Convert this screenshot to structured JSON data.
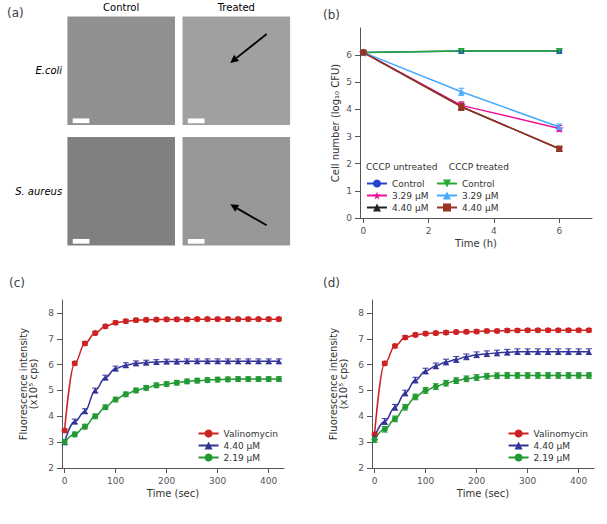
{
  "chart_data": [
    {
      "type": "image_grid",
      "title": "(a)",
      "annotations": [
        "Control",
        "Treated",
        "E.coli",
        "S. aureus"
      ],
      "colors": [
        "#909090",
        "#a0a0a0",
        "#808080",
        "#989898"
      ]
    },
    {
      "type": "line",
      "title": "(b)",
      "xlabel": "Time (h)",
      "ylabel": "Cell number (log₁₀ CFU)",
      "x": [
        0,
        3,
        6
      ],
      "series": [
        {
          "name": "Control",
          "color": "#2244cc",
          "marker": "circle",
          "values": [
            6.1,
            6.15,
            6.15
          ],
          "yerr": [
            0.07,
            0.09,
            0.09
          ]
        },
        {
          "name": "3.29 μM",
          "color": "#ee1199",
          "marker": "star",
          "values": [
            6.1,
            4.15,
            3.3
          ],
          "yerr": [
            0.07,
            0.13,
            0.11
          ]
        },
        {
          "name": "4.40 μM",
          "color": "#222222",
          "marker": "triangle",
          "values": [
            6.1,
            4.1,
            2.55
          ],
          "yerr": [
            0.07,
            0.13,
            0.09
          ]
        },
        {
          "name": "Control",
          "color": "#22aa33",
          "marker": "triangle_down",
          "values": [
            6.1,
            6.15,
            6.15
          ],
          "yerr": [
            0.07,
            0.09,
            0.09
          ]
        },
        {
          "name": "3.29 μM",
          "color": "#44aaff",
          "marker": "triangle",
          "values": [
            6.1,
            4.65,
            3.35
          ],
          "yerr": [
            0.07,
            0.13,
            0.11
          ]
        },
        {
          "name": "4.40 μM",
          "color": "#993322",
          "marker": "square",
          "values": [
            6.1,
            4.1,
            2.55
          ],
          "yerr": [
            0.07,
            0.13,
            0.09
          ]
        }
      ],
      "xlim": [
        -0.1,
        7
      ],
      "ylim": [
        0,
        7
      ],
      "xticks": [
        0,
        2,
        4,
        6
      ],
      "yticks": [
        0,
        1,
        2,
        3,
        4,
        5,
        6
      ],
      "grid": false,
      "legend": "lower left",
      "legend_title": "CCCP untreated    CCCP treated",
      "line_style": "solid"
    },
    {
      "type": "line",
      "title": "(c)",
      "xlabel": "Time (sec)",
      "ylabel": "Fluorescence intensity\n(x10⁵ cps)",
      "x": [
        0,
        20,
        40,
        60,
        80,
        100,
        120,
        140,
        160,
        180,
        200,
        220,
        240,
        260,
        280,
        300,
        320,
        340,
        360,
        380,
        400,
        420
      ],
      "series": [
        {
          "name": "Valinomycin",
          "color": "#cc2222",
          "marker": "circle",
          "values": [
            3.45,
            6.05,
            6.82,
            7.22,
            7.48,
            7.62,
            7.68,
            7.72,
            7.73,
            7.74,
            7.75,
            7.75,
            7.75,
            7.76,
            7.76,
            7.76,
            7.76,
            7.76,
            7.76,
            7.76,
            7.76,
            7.76
          ],
          "yerr": 0.07
        },
        {
          "name": "4.40 μM",
          "color": "#333399",
          "marker": "triangle",
          "values": [
            3.0,
            3.8,
            4.2,
            5.0,
            5.5,
            5.85,
            5.98,
            6.05,
            6.08,
            6.1,
            6.12,
            6.12,
            6.13,
            6.13,
            6.13,
            6.13,
            6.13,
            6.13,
            6.13,
            6.13,
            6.13,
            6.13
          ],
          "yerr": 0.09
        },
        {
          "name": "2.19 μM",
          "color": "#229933",
          "marker": "circle",
          "values": [
            3.0,
            3.3,
            3.6,
            4.0,
            4.35,
            4.65,
            4.85,
            5.0,
            5.1,
            5.2,
            5.25,
            5.3,
            5.35,
            5.38,
            5.4,
            5.42,
            5.43,
            5.44,
            5.44,
            5.44,
            5.44,
            5.44
          ],
          "yerr": 0.09
        }
      ],
      "xlim": [
        -5,
        430
      ],
      "ylim": [
        2,
        8.5
      ],
      "xticks": [
        0,
        100,
        200,
        300,
        400
      ],
      "yticks": [
        2,
        3,
        4,
        5,
        6,
        7,
        8
      ],
      "grid": false,
      "legend": "lower right",
      "line_style": "smooth"
    },
    {
      "type": "line",
      "title": "(d)",
      "xlabel": "Time (sec)",
      "ylabel": "Fluorescence intensity\n(x10⁵ cps)",
      "x": [
        0,
        20,
        40,
        60,
        80,
        100,
        120,
        140,
        160,
        180,
        200,
        220,
        240,
        260,
        280,
        300,
        320,
        340,
        360,
        380,
        400,
        420
      ],
      "series": [
        {
          "name": "Valinomycin",
          "color": "#cc2222",
          "marker": "circle",
          "values": [
            3.3,
            6.05,
            6.72,
            7.05,
            7.15,
            7.2,
            7.22,
            7.24,
            7.26,
            7.27,
            7.28,
            7.3,
            7.3,
            7.32,
            7.32,
            7.33,
            7.33,
            7.33,
            7.33,
            7.33,
            7.33,
            7.33
          ],
          "yerr": 0.07
        },
        {
          "name": "4.40 μM",
          "color": "#333399",
          "marker": "triangle",
          "values": [
            3.2,
            3.8,
            4.35,
            4.9,
            5.4,
            5.75,
            5.95,
            6.1,
            6.2,
            6.3,
            6.38,
            6.42,
            6.45,
            6.48,
            6.5,
            6.5,
            6.5,
            6.5,
            6.5,
            6.5,
            6.5,
            6.5
          ],
          "yerr": 0.11
        },
        {
          "name": "2.19 μM",
          "color": "#229933",
          "marker": "circle",
          "values": [
            3.1,
            3.5,
            3.9,
            4.35,
            4.75,
            5.0,
            5.15,
            5.28,
            5.38,
            5.45,
            5.5,
            5.55,
            5.57,
            5.58,
            5.58,
            5.58,
            5.58,
            5.58,
            5.58,
            5.58,
            5.58,
            5.58
          ],
          "yerr": 0.11
        }
      ],
      "xlim": [
        -5,
        430
      ],
      "ylim": [
        2,
        8.5
      ],
      "xticks": [
        0,
        100,
        200,
        300,
        400
      ],
      "yticks": [
        2,
        3,
        4,
        5,
        6,
        7,
        8
      ],
      "grid": false,
      "legend": "lower right",
      "line_style": "smooth"
    }
  ]
}
